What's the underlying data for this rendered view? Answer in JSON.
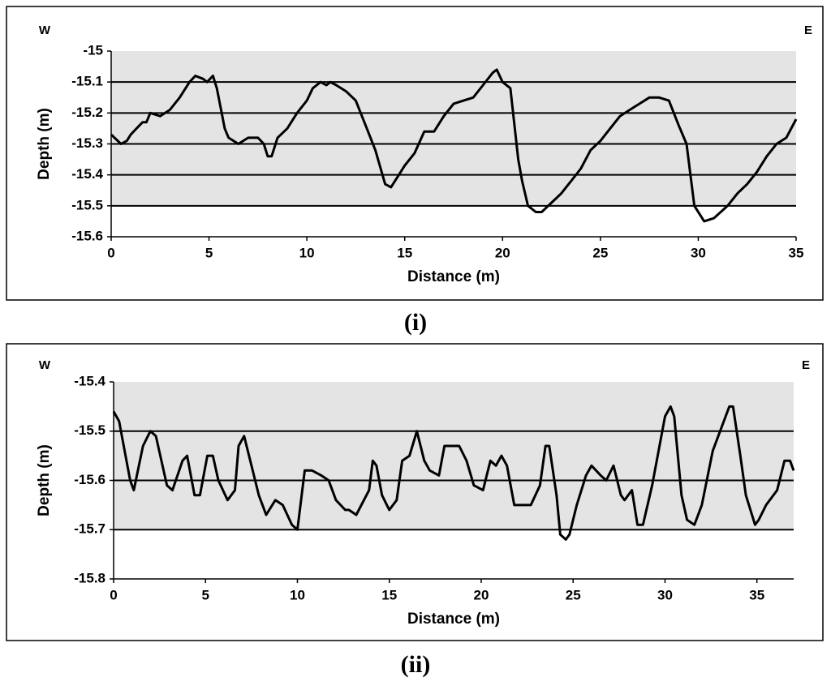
{
  "chart_data": [
    {
      "type": "line",
      "annotations": [
        "W",
        "E"
      ],
      "xlabel": "Distance (m)",
      "ylabel": "Depth (m)",
      "caption": "(i)",
      "color": "#000000",
      "xlim": [
        0,
        35
      ],
      "xticks": [
        0,
        5,
        10,
        15,
        20,
        25,
        30,
        35
      ],
      "ylim": [
        -15.6,
        -15.0
      ],
      "yticks": [
        -15,
        -15.1,
        -15.2,
        -15.3,
        -15.4,
        -15.5,
        -15.6
      ],
      "grid": true,
      "shaded_band": [
        -15.5,
        -15.0
      ],
      "x": [
        0,
        0.5,
        0.8,
        1,
        1.3,
        1.6,
        1.8,
        2,
        2.5,
        3,
        3.5,
        4,
        4.3,
        4.7,
        4.9,
        5.2,
        5.4,
        5.8,
        6,
        6.5,
        7,
        7.5,
        7.8,
        8,
        8.2,
        8.5,
        9,
        9.5,
        10,
        10.3,
        10.7,
        11,
        11.2,
        11.5,
        12,
        12.5,
        13,
        13.5,
        14,
        14.3,
        14.7,
        15,
        15.5,
        16,
        16.5,
        17,
        17.5,
        18,
        18.5,
        19,
        19.5,
        19.7,
        20,
        20.4,
        20.8,
        21,
        21.3,
        21.7,
        22,
        22.5,
        23,
        23.5,
        24,
        24.5,
        25,
        25.5,
        26,
        26.5,
        27,
        27.5,
        28,
        28.5,
        29,
        29.4,
        29.8,
        30.3,
        30.8,
        31.5,
        32,
        32.5,
        33,
        33.5,
        34,
        34.5,
        35
      ],
      "values": [
        -15.27,
        -15.3,
        -15.29,
        -15.27,
        -15.25,
        -15.23,
        -15.23,
        -15.2,
        -15.21,
        -15.19,
        -15.15,
        -15.1,
        -15.08,
        -15.09,
        -15.1,
        -15.08,
        -15.12,
        -15.25,
        -15.28,
        -15.3,
        -15.28,
        -15.28,
        -15.3,
        -15.34,
        -15.34,
        -15.28,
        -15.25,
        -15.2,
        -15.16,
        -15.12,
        -15.1,
        -15.11,
        -15.1,
        -15.11,
        -15.13,
        -15.16,
        -15.24,
        -15.32,
        -15.43,
        -15.44,
        -15.4,
        -15.37,
        -15.33,
        -15.26,
        -15.26,
        -15.21,
        -15.17,
        -15.16,
        -15.15,
        -15.11,
        -15.07,
        -15.06,
        -15.1,
        -15.12,
        -15.35,
        -15.42,
        -15.5,
        -15.52,
        -15.52,
        -15.49,
        -15.46,
        -15.42,
        -15.38,
        -15.32,
        -15.29,
        -15.25,
        -15.21,
        -15.19,
        -15.17,
        -15.15,
        -15.15,
        -15.16,
        -15.24,
        -15.3,
        -15.5,
        -15.55,
        -15.54,
        -15.5,
        -15.46,
        -15.43,
        -15.39,
        -15.34,
        -15.3,
        -15.28,
        -15.22
      ]
    },
    {
      "type": "line",
      "annotations": [
        "W",
        "E"
      ],
      "xlabel": "Distance (m)",
      "ylabel": "Depth (m)",
      "caption": "(ii)",
      "color": "#000000",
      "xlim": [
        0,
        37
      ],
      "xticks": [
        0,
        5,
        10,
        15,
        20,
        25,
        30,
        35
      ],
      "ylim": [
        -15.8,
        -15.4
      ],
      "yticks": [
        -15.4,
        -15.5,
        -15.6,
        -15.7,
        -15.8
      ],
      "grid": true,
      "shaded_band": [
        -15.7,
        -15.4
      ],
      "x": [
        0,
        0.3,
        0.9,
        1.1,
        1.6,
        2,
        2.3,
        2.9,
        3.2,
        3.75,
        4,
        4.4,
        4.7,
        5.1,
        5.4,
        5.7,
        6.2,
        6.6,
        6.8,
        7.1,
        7.5,
        7.9,
        8.3,
        8.8,
        9.2,
        9.7,
        10,
        10.4,
        10.8,
        11.3,
        11.7,
        12.1,
        12.6,
        12.8,
        13.2,
        13.9,
        14.1,
        14.3,
        14.6,
        15,
        15.4,
        15.7,
        16.1,
        16.5,
        16.9,
        17.2,
        17.7,
        18,
        18.3,
        18.8,
        19.2,
        19.6,
        20.1,
        20.5,
        20.8,
        21.1,
        21.4,
        21.8,
        22.3,
        22.7,
        23.2,
        23.5,
        23.7,
        24.1,
        24.3,
        24.6,
        24.8,
        25.2,
        25.7,
        26,
        26.5,
        26.8,
        27.2,
        27.6,
        27.8,
        28.2,
        28.5,
        28.8,
        29.3,
        30,
        30.3,
        30.5,
        30.9,
        31.2,
        31.6,
        32,
        32.6,
        33,
        33.5,
        33.7,
        34.1,
        34.4,
        34.9,
        35.1,
        35.5,
        36.1,
        36.5,
        36.8,
        37
      ],
      "values": [
        -15.46,
        -15.48,
        -15.6,
        -15.62,
        -15.53,
        -15.5,
        -15.51,
        -15.61,
        -15.62,
        -15.56,
        -15.55,
        -15.63,
        -15.63,
        -15.55,
        -15.55,
        -15.6,
        -15.64,
        -15.62,
        -15.53,
        -15.51,
        -15.57,
        -15.63,
        -15.67,
        -15.64,
        -15.65,
        -15.69,
        -15.7,
        -15.58,
        -15.58,
        -15.59,
        -15.6,
        -15.64,
        -15.66,
        -15.66,
        -15.67,
        -15.62,
        -15.56,
        -15.57,
        -15.63,
        -15.66,
        -15.64,
        -15.56,
        -15.55,
        -15.5,
        -15.56,
        -15.58,
        -15.59,
        -15.53,
        -15.53,
        -15.53,
        -15.56,
        -15.61,
        -15.62,
        -15.56,
        -15.57,
        -15.55,
        -15.57,
        -15.65,
        -15.65,
        -15.65,
        -15.61,
        -15.53,
        -15.53,
        -15.63,
        -15.71,
        -15.72,
        -15.71,
        -15.65,
        -15.59,
        -15.57,
        -15.59,
        -15.6,
        -15.57,
        -15.63,
        -15.64,
        -15.62,
        -15.69,
        -15.69,
        -15.61,
        -15.47,
        -15.45,
        -15.47,
        -15.63,
        -15.68,
        -15.69,
        -15.65,
        -15.54,
        -15.5,
        -15.45,
        -15.45,
        -15.55,
        -15.63,
        -15.69,
        -15.68,
        -15.65,
        -15.62,
        -15.56,
        -15.56,
        -15.58
      ]
    }
  ]
}
